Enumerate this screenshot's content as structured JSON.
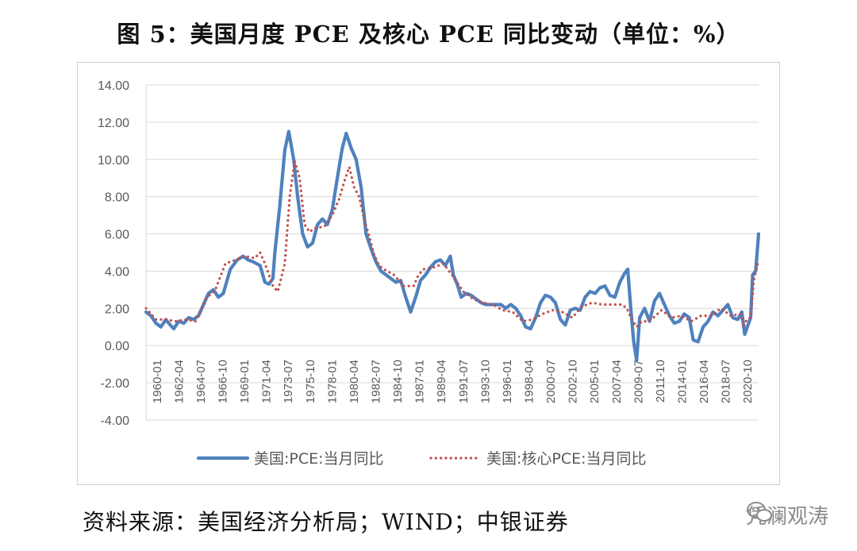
{
  "header": {
    "title": "图 5：美国月度 PCE 及核心 PCE 同比变动（单位：%）"
  },
  "footer": {
    "source": "资料来源：美国经济分析局；WIND；中银证券",
    "watermark": "凭澜观涛"
  },
  "colors": {
    "pce": "#4f81bd",
    "core": "#c0504d",
    "grid": "#d9d9d9"
  },
  "chart_data": {
    "type": "line",
    "title": "图 5：美国月度 PCE 及核心 PCE 同比变动（单位：%）",
    "xlabel": "",
    "ylabel": "",
    "ylim": [
      -4,
      14
    ],
    "yticks": [
      "14.00",
      "12.00",
      "10.00",
      "8.00",
      "6.00",
      "4.00",
      "2.00",
      "0.00",
      "-2.00",
      "-4.00"
    ],
    "xticks": [
      "1960-01",
      "1962-04",
      "1964-07",
      "1966-10",
      "1969-01",
      "1971-04",
      "1973-07",
      "1975-10",
      "1978-01",
      "1980-04",
      "1982-07",
      "1984-10",
      "1987-01",
      "1989-04",
      "1991-07",
      "1993-10",
      "1996-01",
      "1998-04",
      "2000-07",
      "2002-10",
      "2005-01",
      "2007-04",
      "2009-07",
      "2011-10",
      "2014-01",
      "2016-04",
      "2018-07",
      "2020-10"
    ],
    "grid": true,
    "legend": "bottom",
    "series": [
      {
        "name": "美国:PCE:当月同比",
        "x": [
          1960.0,
          1960.5,
          1961.0,
          1961.5,
          1962.0,
          1962.3,
          1962.8,
          1963.3,
          1963.8,
          1964.3,
          1964.8,
          1965.3,
          1965.8,
          1966.3,
          1966.8,
          1967.3,
          1967.8,
          1968.5,
          1969.2,
          1969.8,
          1970.3,
          1970.8,
          1971.5,
          1972.0,
          1972.4,
          1972.8,
          1973.0,
          1973.5,
          1974.0,
          1974.4,
          1974.9,
          1975.3,
          1975.8,
          1976.3,
          1976.8,
          1977.3,
          1977.8,
          1978.3,
          1978.8,
          1979.3,
          1979.8,
          1980.2,
          1980.7,
          1981.2,
          1981.7,
          1982.2,
          1982.7,
          1983.2,
          1983.7,
          1984.2,
          1984.7,
          1985.2,
          1985.7,
          1986.2,
          1986.7,
          1987.2,
          1987.7,
          1988.2,
          1988.7,
          1989.2,
          1989.7,
          1990.2,
          1990.7,
          1991.0,
          1991.4,
          1991.8,
          1992.3,
          1992.8,
          1993.3,
          1993.8,
          1994.3,
          1994.8,
          1995.3,
          1995.8,
          1996.3,
          1996.8,
          1997.3,
          1997.8,
          1998.3,
          1998.8,
          1999.3,
          1999.8,
          2000.3,
          2000.8,
          2001.3,
          2001.8,
          2002.3,
          2002.8,
          2003.3,
          2003.8,
          2004.3,
          2004.8,
          2005.3,
          2005.8,
          2006.3,
          2006.8,
          2007.3,
          2007.8,
          2008.3,
          2008.6,
          2008.9,
          2009.2,
          2009.5,
          2009.8,
          2010.3,
          2010.8,
          2011.3,
          2011.8,
          2012.3,
          2012.8,
          2013.3,
          2013.8,
          2014.3,
          2014.8,
          2015.2,
          2015.7,
          2016.2,
          2016.7,
          2017.2,
          2017.7,
          2018.2,
          2018.7,
          2019.2,
          2019.7,
          2020.1,
          2020.4,
          2020.8,
          2021.0,
          2021.2,
          2021.5,
          2021.8
        ],
        "y": [
          1.8,
          1.6,
          1.2,
          1.0,
          1.4,
          1.2,
          0.9,
          1.3,
          1.2,
          1.5,
          1.4,
          1.6,
          2.2,
          2.8,
          3.0,
          2.6,
          2.8,
          4.1,
          4.6,
          4.8,
          4.6,
          4.5,
          4.3,
          3.4,
          3.3,
          3.6,
          5.0,
          7.5,
          10.5,
          11.5,
          10.0,
          8.0,
          6.0,
          5.3,
          5.5,
          6.5,
          6.8,
          6.5,
          7.3,
          9.0,
          10.6,
          11.4,
          10.6,
          10.0,
          8.5,
          6.0,
          5.2,
          4.5,
          4.0,
          3.8,
          3.6,
          3.4,
          3.5,
          2.6,
          1.8,
          2.6,
          3.5,
          3.8,
          4.2,
          4.5,
          4.6,
          4.3,
          4.8,
          3.8,
          3.3,
          2.6,
          2.8,
          2.7,
          2.5,
          2.3,
          2.2,
          2.2,
          2.2,
          2.2,
          2.0,
          2.2,
          2.0,
          1.6,
          1.0,
          0.9,
          1.5,
          2.3,
          2.7,
          2.6,
          2.3,
          1.4,
          1.1,
          1.9,
          2.0,
          1.9,
          2.6,
          2.9,
          2.8,
          3.1,
          3.2,
          2.7,
          2.6,
          3.4,
          3.9,
          4.1,
          2.0,
          0.2,
          -0.8,
          1.5,
          2.0,
          1.3,
          2.4,
          2.8,
          2.2,
          1.6,
          1.2,
          1.3,
          1.7,
          1.5,
          0.3,
          0.2,
          1.0,
          1.3,
          1.8,
          1.6,
          1.9,
          2.2,
          1.5,
          1.4,
          1.8,
          0.6,
          1.2,
          1.5,
          3.8,
          4.0,
          6.0
        ]
      },
      {
        "name": "美国:核心PCE:当月同比",
        "x": [
          1960.0,
          1961.0,
          1962.0,
          1963.0,
          1964.0,
          1965.0,
          1966.0,
          1967.0,
          1968.0,
          1969.0,
          1970.0,
          1971.0,
          1971.5,
          1972.0,
          1972.8,
          1973.3,
          1974.0,
          1974.5,
          1975.0,
          1975.5,
          1976.0,
          1976.5,
          1977.0,
          1978.0,
          1978.8,
          1979.5,
          1980.0,
          1980.5,
          1981.0,
          1981.5,
          1982.0,
          1982.5,
          1983.0,
          1983.5,
          1984.0,
          1985.0,
          1986.0,
          1987.0,
          1987.5,
          1988.0,
          1989.0,
          1990.0,
          1991.0,
          1992.0,
          1993.0,
          1994.0,
          1995.0,
          1996.0,
          1997.0,
          1998.0,
          1999.0,
          2000.0,
          2001.0,
          2002.0,
          2003.0,
          2004.0,
          2005.0,
          2006.0,
          2007.0,
          2008.0,
          2008.5,
          2009.0,
          2009.5,
          2010.0,
          2010.5,
          2011.0,
          2012.0,
          2013.0,
          2014.0,
          2015.0,
          2016.0,
          2017.0,
          2018.0,
          2019.0,
          2020.0,
          2020.3,
          2020.6,
          2021.0,
          2021.3,
          2021.8
        ],
        "y": [
          2.0,
          1.4,
          1.4,
          1.3,
          1.4,
          1.3,
          2.5,
          3.0,
          4.4,
          4.6,
          4.8,
          4.7,
          5.0,
          4.4,
          3.2,
          2.9,
          4.4,
          8.0,
          9.9,
          9.0,
          6.5,
          6.1,
          6.3,
          6.4,
          7.0,
          7.9,
          8.8,
          9.6,
          8.5,
          8.0,
          6.8,
          5.9,
          4.9,
          4.3,
          4.1,
          3.8,
          3.2,
          3.2,
          3.8,
          4.1,
          4.2,
          4.4,
          3.7,
          2.9,
          2.5,
          2.3,
          2.2,
          1.9,
          1.8,
          1.3,
          1.4,
          1.7,
          1.9,
          1.8,
          1.5,
          2.1,
          2.3,
          2.2,
          2.2,
          2.2,
          2.0,
          1.4,
          1.0,
          1.3,
          1.3,
          1.4,
          1.9,
          1.5,
          1.6,
          1.3,
          1.6,
          1.6,
          2.0,
          1.6,
          1.7,
          1.0,
          1.4,
          1.5,
          3.5,
          4.6
        ]
      }
    ]
  }
}
